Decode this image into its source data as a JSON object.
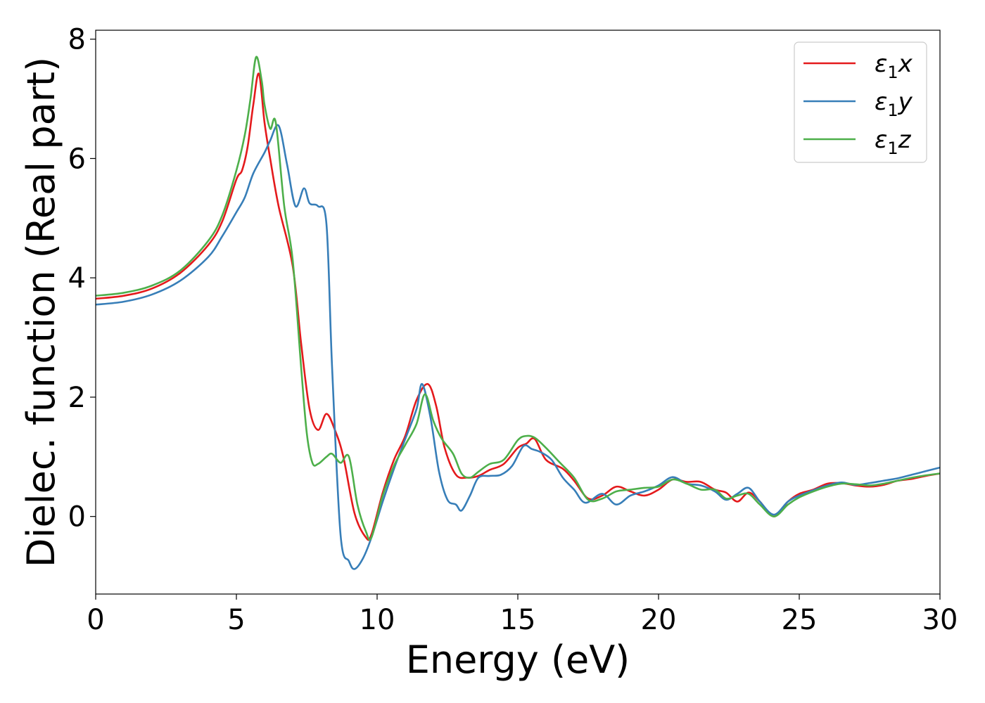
{
  "chart_data": {
    "type": "line",
    "title": "",
    "xlabel": "Energy (eV)",
    "ylabel": "Dielec. function (Real part)",
    "xlim": [
      0,
      30
    ],
    "ylim": [
      -1.3,
      8.15
    ],
    "xticks": [
      0,
      5,
      10,
      15,
      20,
      25,
      30
    ],
    "yticks": [
      0,
      2,
      4,
      6,
      8
    ],
    "xtick_labels": [
      "0",
      "5",
      "10",
      "15",
      "20",
      "25",
      "30"
    ],
    "ytick_labels": [
      "0",
      "2",
      "4",
      "6",
      "8"
    ],
    "grid": false,
    "legend_position": "top-right",
    "series": [
      {
        "name": "ε₁x",
        "legend_main": "ε",
        "legend_sub": "1",
        "legend_var": "x",
        "color": "#e41a1c",
        "x": [
          0,
          1,
          2,
          3,
          4,
          4.5,
          5,
          5.2,
          5.4,
          5.6,
          5.8,
          6.0,
          6.2,
          6.5,
          7.0,
          7.3,
          7.6,
          7.9,
          8.2,
          8.5,
          8.8,
          9.2,
          9.6,
          9.8,
          10.2,
          10.6,
          11.0,
          11.4,
          11.8,
          12.1,
          12.4,
          12.8,
          13.2,
          13.6,
          14.0,
          14.5,
          15.0,
          15.3,
          15.6,
          16.0,
          16.6,
          17.0,
          17.5,
          18.0,
          18.5,
          19.0,
          19.5,
          20.0,
          20.5,
          21.0,
          21.5,
          22.0,
          22.4,
          22.8,
          23.2,
          23.6,
          24.1,
          24.6,
          25.0,
          25.5,
          26.0,
          26.5,
          27.0,
          27.5,
          28.0,
          28.5,
          29.0,
          29.5,
          30.0
        ],
        "y": [
          3.65,
          3.7,
          3.82,
          4.08,
          4.55,
          4.95,
          5.65,
          5.8,
          6.2,
          6.9,
          7.42,
          6.6,
          6.0,
          5.2,
          4.2,
          2.9,
          1.8,
          1.45,
          1.72,
          1.45,
          1.0,
          0.05,
          -0.35,
          -0.3,
          0.4,
          0.95,
          1.35,
          1.95,
          2.22,
          1.85,
          1.15,
          0.7,
          0.65,
          0.68,
          0.78,
          0.88,
          1.15,
          1.22,
          1.3,
          0.95,
          0.8,
          0.6,
          0.3,
          0.35,
          0.5,
          0.42,
          0.35,
          0.45,
          0.62,
          0.58,
          0.58,
          0.45,
          0.4,
          0.25,
          0.4,
          0.25,
          0.0,
          0.25,
          0.38,
          0.45,
          0.55,
          0.56,
          0.52,
          0.5,
          0.53,
          0.6,
          0.63,
          0.68,
          0.72
        ]
      },
      {
        "name": "ε₁y",
        "legend_main": "ε",
        "legend_sub": "1",
        "legend_var": "y",
        "color": "#377eb8",
        "x": [
          0,
          1,
          2,
          3,
          4,
          4.5,
          5,
          5.3,
          5.6,
          6.0,
          6.2,
          6.5,
          6.8,
          7.1,
          7.4,
          7.6,
          7.9,
          8.2,
          8.4,
          8.7,
          9.0,
          9.2,
          9.5,
          9.8,
          10.2,
          10.6,
          11.0,
          11.4,
          11.6,
          11.9,
          12.2,
          12.5,
          12.8,
          13.0,
          13.3,
          13.6,
          14.0,
          14.4,
          14.8,
          15.2,
          15.5,
          15.8,
          16.2,
          16.6,
          17.0,
          17.4,
          18.0,
          18.5,
          19.0,
          19.5,
          20.0,
          20.5,
          21.0,
          21.5,
          22.0,
          22.4,
          22.8,
          23.2,
          23.6,
          24.1,
          24.6,
          25.0,
          25.5,
          26.0,
          26.5,
          27.0,
          27.5,
          28.0,
          28.5,
          29.0,
          29.5,
          30.0
        ],
        "y": [
          3.55,
          3.6,
          3.72,
          3.95,
          4.35,
          4.7,
          5.1,
          5.35,
          5.75,
          6.1,
          6.3,
          6.55,
          5.9,
          5.2,
          5.5,
          5.25,
          5.2,
          4.9,
          2.5,
          -0.3,
          -0.75,
          -0.88,
          -0.7,
          -0.35,
          0.25,
          0.8,
          1.3,
          1.8,
          2.22,
          1.65,
          0.75,
          0.28,
          0.2,
          0.1,
          0.35,
          0.65,
          0.68,
          0.7,
          0.85,
          1.18,
          1.13,
          1.08,
          0.95,
          0.65,
          0.45,
          0.23,
          0.38,
          0.2,
          0.35,
          0.42,
          0.52,
          0.66,
          0.55,
          0.52,
          0.42,
          0.28,
          0.38,
          0.48,
          0.25,
          0.03,
          0.25,
          0.35,
          0.44,
          0.52,
          0.57,
          0.53,
          0.56,
          0.6,
          0.64,
          0.7,
          0.76,
          0.82
        ]
      },
      {
        "name": "ε₁z",
        "legend_main": "ε",
        "legend_sub": "1",
        "legend_var": "z",
        "color": "#4daf4a",
        "x": [
          0,
          1,
          2,
          3,
          4,
          4.5,
          5,
          5.3,
          5.5,
          5.7,
          5.9,
          6.0,
          6.2,
          6.4,
          6.7,
          7.0,
          7.3,
          7.5,
          7.7,
          7.9,
          8.2,
          8.4,
          8.7,
          9.0,
          9.3,
          9.6,
          9.8,
          10.2,
          10.6,
          11.0,
          11.4,
          11.7,
          12.0,
          12.3,
          12.7,
          13.0,
          13.3,
          13.6,
          14.0,
          14.5,
          15.0,
          15.3,
          15.6,
          16.0,
          16.5,
          17.0,
          17.5,
          18.0,
          18.5,
          19.0,
          19.5,
          20.0,
          20.5,
          21.0,
          21.5,
          22.0,
          22.4,
          22.8,
          23.2,
          23.6,
          24.1,
          24.6,
          25.0,
          25.5,
          26.0,
          26.5,
          27.0,
          27.5,
          28.0,
          28.5,
          29.0,
          29.5,
          30.0
        ],
        "y": [
          3.7,
          3.75,
          3.87,
          4.12,
          4.62,
          5.05,
          5.8,
          6.4,
          7.0,
          7.7,
          7.3,
          6.9,
          6.5,
          6.6,
          5.2,
          4.3,
          2.5,
          1.4,
          0.9,
          0.88,
          1.0,
          1.05,
          0.9,
          1.0,
          0.2,
          -0.25,
          -0.35,
          0.35,
          0.85,
          1.2,
          1.55,
          2.05,
          1.6,
          1.3,
          1.05,
          0.72,
          0.65,
          0.75,
          0.88,
          0.95,
          1.28,
          1.35,
          1.32,
          1.15,
          0.9,
          0.65,
          0.28,
          0.3,
          0.42,
          0.45,
          0.48,
          0.5,
          0.62,
          0.55,
          0.45,
          0.45,
          0.3,
          0.35,
          0.38,
          0.2,
          0.0,
          0.2,
          0.32,
          0.42,
          0.5,
          0.55,
          0.54,
          0.52,
          0.55,
          0.6,
          0.65,
          0.69,
          0.72
        ]
      }
    ]
  }
}
